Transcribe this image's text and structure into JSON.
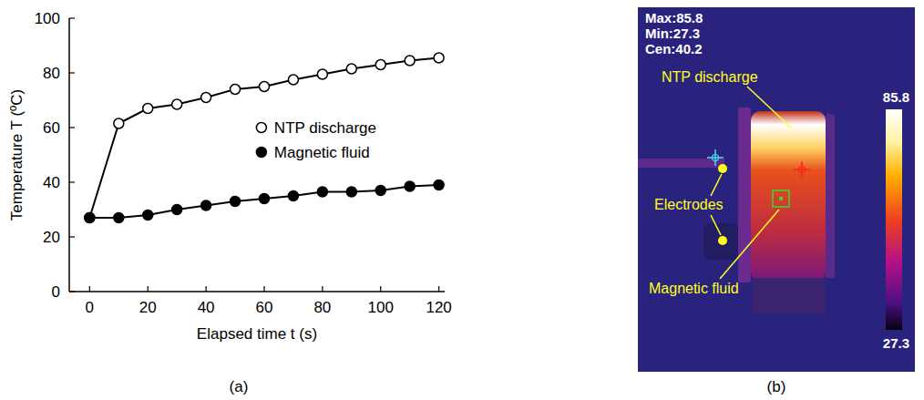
{
  "chart_data": {
    "type": "line",
    "x_label": "Elapsed time t (s)",
    "y_label": "Temperature T (ºC)",
    "x": [
      0,
      10,
      20,
      30,
      40,
      50,
      60,
      70,
      80,
      90,
      100,
      110,
      120
    ],
    "series": [
      {
        "name": "NTP discharge",
        "color": "#000000",
        "marker": "open_circle",
        "values": [
          27,
          61.5,
          67,
          68.5,
          71,
          74,
          75,
          77.5,
          79.5,
          81.5,
          83,
          84.5,
          85.5
        ]
      },
      {
        "name": "Magnetic fluid",
        "color": "#000000",
        "marker": "filled_circle",
        "values": [
          27,
          27,
          28,
          30,
          31.5,
          33,
          34,
          35,
          36.5,
          36.5,
          37,
          38.5,
          39
        ]
      }
    ],
    "xlim": [
      -7,
      122
    ],
    "xticks": [
      0,
      20,
      40,
      60,
      80,
      100,
      120
    ],
    "ylim": [
      0,
      100
    ],
    "yticks": [
      0,
      20,
      40,
      60,
      80,
      100
    ],
    "grid": false,
    "legend": "right"
  },
  "thermal_image": {
    "readouts": [
      "Max:85.8",
      "Min:27.3",
      "Cen:40.2"
    ],
    "colorbar": {
      "max": 85.8,
      "min": 27.3
    },
    "labels": {
      "discharge": "NTP discharge",
      "electrodes": "Electrodes",
      "fluid": "Magnetic fluid"
    }
  },
  "panel_labels": [
    "(a)",
    "(b)"
  ]
}
